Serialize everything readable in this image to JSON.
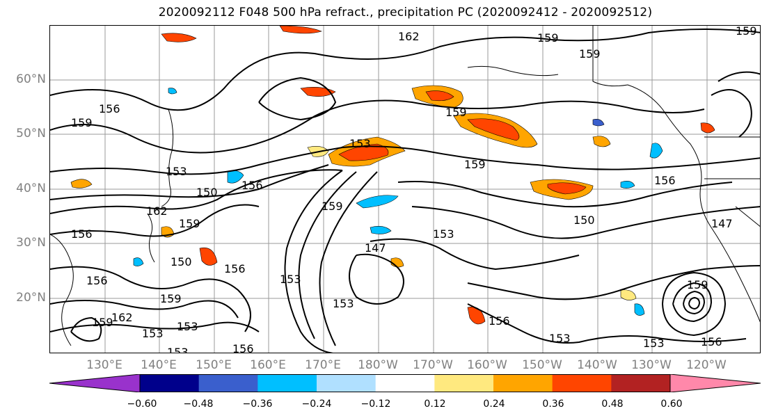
{
  "title": "2020092112 F048 500 hPa refract., precipitation PC (2020092412 - 2020092512)",
  "lat_labels": [
    "60°N",
    "50°N",
    "40°N",
    "30°N",
    "20°N"
  ],
  "lon_labels": [
    "130°E",
    "140°E",
    "150°E",
    "160°E",
    "170°E",
    "180°W",
    "170°W",
    "160°W",
    "150°W",
    "140°W",
    "130°W",
    "120°W"
  ],
  "contour_labels": [
    "162",
    "159",
    "159",
    "159",
    "156",
    "159",
    "153",
    "159",
    "150",
    "156",
    "162",
    "159",
    "156",
    "153",
    "159",
    "153",
    "147",
    "150",
    "156",
    "159",
    "153",
    "153",
    "153",
    "156",
    "153",
    "159",
    "156",
    "153",
    "156",
    "147",
    "150",
    "159",
    "153",
    "156",
    "153",
    "156",
    "162",
    "159"
  ],
  "colorbar": {
    "ticks": [
      "−0.60",
      "−0.48",
      "−0.36",
      "−0.24",
      "−0.12",
      "0.12",
      "0.24",
      "0.36",
      "0.48",
      "0.60"
    ],
    "colors": [
      "#9932cc",
      "#00008b",
      "#3a5fcd",
      "#00bfff",
      "#b0e0ff",
      "#ffffff",
      "#ffe97f",
      "#ffa500",
      "#ff4500",
      "#b22222",
      "#ff88aa"
    ]
  }
}
